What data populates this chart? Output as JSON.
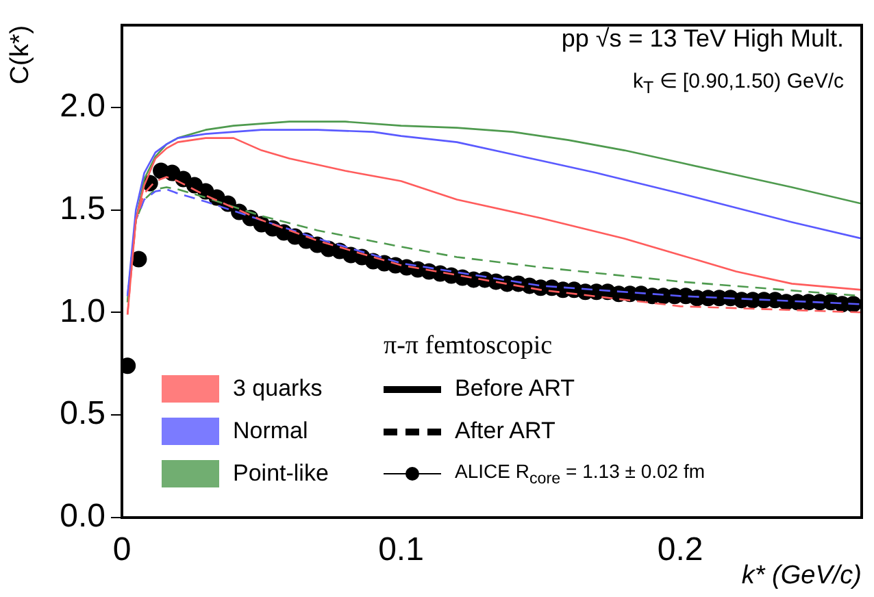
{
  "chart_data": {
    "type": "line",
    "xlabel": "k* (GeV/c)",
    "ylabel": "C(k*)",
    "legend_title": "π-π femtoscopic",
    "annotations": [
      "pp √s = 13 TeV High Mult.",
      "k$_{T}$ ∈ [0.90,1.50) GeV/c",
      "Before ART",
      "After ART"
    ],
    "xlim": [
      0,
      0.265
    ],
    "ylim": [
      0,
      2.4
    ],
    "xticks": [
      0,
      0.1,
      0.2
    ],
    "yticks": [
      {
        "value": 0,
        "label": "0.0"
      },
      {
        "value": 0.5,
        "label": "0.5"
      },
      {
        "value": 1,
        "label": "1.0"
      },
      {
        "value": 1.5,
        "label": "1.5"
      },
      {
        "value": 2,
        "label": "2.0"
      }
    ],
    "grid": false,
    "legend": "bottom left",
    "series": [
      {
        "name": "3 quarks",
        "line_style": "solid",
        "color": "#ff5c5c",
        "x": [
          0.002,
          0.005,
          0.008,
          0.012,
          0.016,
          0.02,
          0.03,
          0.04,
          0.05,
          0.06,
          0.08,
          0.1,
          0.12,
          0.15,
          0.18,
          0.2,
          0.22,
          0.24,
          0.265
        ],
        "values": [
          0.99,
          1.45,
          1.62,
          1.75,
          1.8,
          1.83,
          1.85,
          1.85,
          1.79,
          1.75,
          1.69,
          1.64,
          1.55,
          1.46,
          1.36,
          1.28,
          1.2,
          1.14,
          1.11
        ]
      },
      {
        "name": "Normal",
        "line_style": "solid",
        "color": "#5a5aff",
        "x": [
          0.002,
          0.005,
          0.008,
          0.012,
          0.016,
          0.02,
          0.03,
          0.05,
          0.07,
          0.09,
          0.1,
          0.12,
          0.14,
          0.15,
          0.17,
          0.2,
          0.22,
          0.24,
          0.265
        ],
        "values": [
          1.08,
          1.5,
          1.68,
          1.78,
          1.82,
          1.85,
          1.87,
          1.89,
          1.89,
          1.88,
          1.86,
          1.83,
          1.77,
          1.74,
          1.68,
          1.58,
          1.51,
          1.44,
          1.36
        ]
      },
      {
        "name": "Point-like",
        "line_style": "solid",
        "color": "#4e9a4e",
        "x": [
          0.002,
          0.005,
          0.008,
          0.012,
          0.016,
          0.02,
          0.03,
          0.04,
          0.06,
          0.08,
          0.1,
          0.12,
          0.14,
          0.16,
          0.18,
          0.2,
          0.22,
          0.24,
          0.265
        ],
        "values": [
          1.05,
          1.45,
          1.65,
          1.76,
          1.82,
          1.85,
          1.89,
          1.91,
          1.93,
          1.93,
          1.91,
          1.9,
          1.88,
          1.84,
          1.79,
          1.73,
          1.67,
          1.61,
          1.53
        ]
      },
      {
        "line_style": "dashed",
        "color": "#ff5c5c",
        "x": [
          0.002,
          0.005,
          0.008,
          0.012,
          0.016,
          0.02,
          0.03,
          0.05,
          0.07,
          0.1,
          0.15,
          0.2,
          0.265
        ],
        "values": [
          0.99,
          1.45,
          1.58,
          1.64,
          1.66,
          1.64,
          1.57,
          1.45,
          1.35,
          1.23,
          1.11,
          1.03,
          1.0
        ]
      },
      {
        "line_style": "dashed",
        "color": "#5a5aff",
        "x": [
          0.002,
          0.005,
          0.008,
          0.012,
          0.016,
          0.02,
          0.03,
          0.05,
          0.07,
          0.1,
          0.15,
          0.2,
          0.265
        ],
        "values": [
          1.08,
          1.45,
          1.55,
          1.59,
          1.6,
          1.58,
          1.54,
          1.45,
          1.36,
          1.24,
          1.13,
          1.08,
          1.04
        ]
      },
      {
        "line_style": "dashed",
        "color": "#4e9a4e",
        "x": [
          0.002,
          0.005,
          0.008,
          0.012,
          0.016,
          0.02,
          0.03,
          0.05,
          0.07,
          0.1,
          0.12,
          0.15,
          0.2,
          0.265
        ],
        "values": [
          1.05,
          1.45,
          1.55,
          1.6,
          1.61,
          1.6,
          1.56,
          1.47,
          1.4,
          1.32,
          1.27,
          1.22,
          1.15,
          1.08
        ]
      },
      {
        "name": "ALICE R$_{core}$ = 1.13 ± 0.02 fm",
        "type": "scatter",
        "marker": "circle",
        "color": "#000000",
        "x": [
          0.002,
          0.006,
          0.01,
          0.014,
          0.018,
          0.022,
          0.026,
          0.03,
          0.034,
          0.038,
          0.042,
          0.046,
          0.05,
          0.054,
          0.058,
          0.062,
          0.066,
          0.07,
          0.074,
          0.078,
          0.082,
          0.086,
          0.09,
          0.094,
          0.098,
          0.102,
          0.106,
          0.11,
          0.114,
          0.118,
          0.122,
          0.126,
          0.13,
          0.134,
          0.138,
          0.142,
          0.146,
          0.15,
          0.154,
          0.158,
          0.162,
          0.166,
          0.17,
          0.174,
          0.178,
          0.182,
          0.186,
          0.19,
          0.194,
          0.198,
          0.202,
          0.206,
          0.21,
          0.214,
          0.218,
          0.222,
          0.226,
          0.23,
          0.234,
          0.238,
          0.242,
          0.246,
          0.25,
          0.254,
          0.258,
          0.262
        ],
        "values": [
          0.74,
          1.26,
          1.63,
          1.69,
          1.68,
          1.65,
          1.62,
          1.59,
          1.56,
          1.53,
          1.49,
          1.46,
          1.43,
          1.41,
          1.39,
          1.37,
          1.35,
          1.33,
          1.31,
          1.3,
          1.28,
          1.27,
          1.25,
          1.24,
          1.23,
          1.22,
          1.21,
          1.2,
          1.19,
          1.18,
          1.17,
          1.16,
          1.16,
          1.15,
          1.14,
          1.14,
          1.13,
          1.12,
          1.12,
          1.11,
          1.11,
          1.1,
          1.1,
          1.1,
          1.09,
          1.09,
          1.09,
          1.08,
          1.08,
          1.08,
          1.08,
          1.07,
          1.07,
          1.07,
          1.07,
          1.06,
          1.06,
          1.06,
          1.06,
          1.05,
          1.05,
          1.05,
          1.05,
          1.05,
          1.04,
          1.04
        ]
      }
    ]
  }
}
